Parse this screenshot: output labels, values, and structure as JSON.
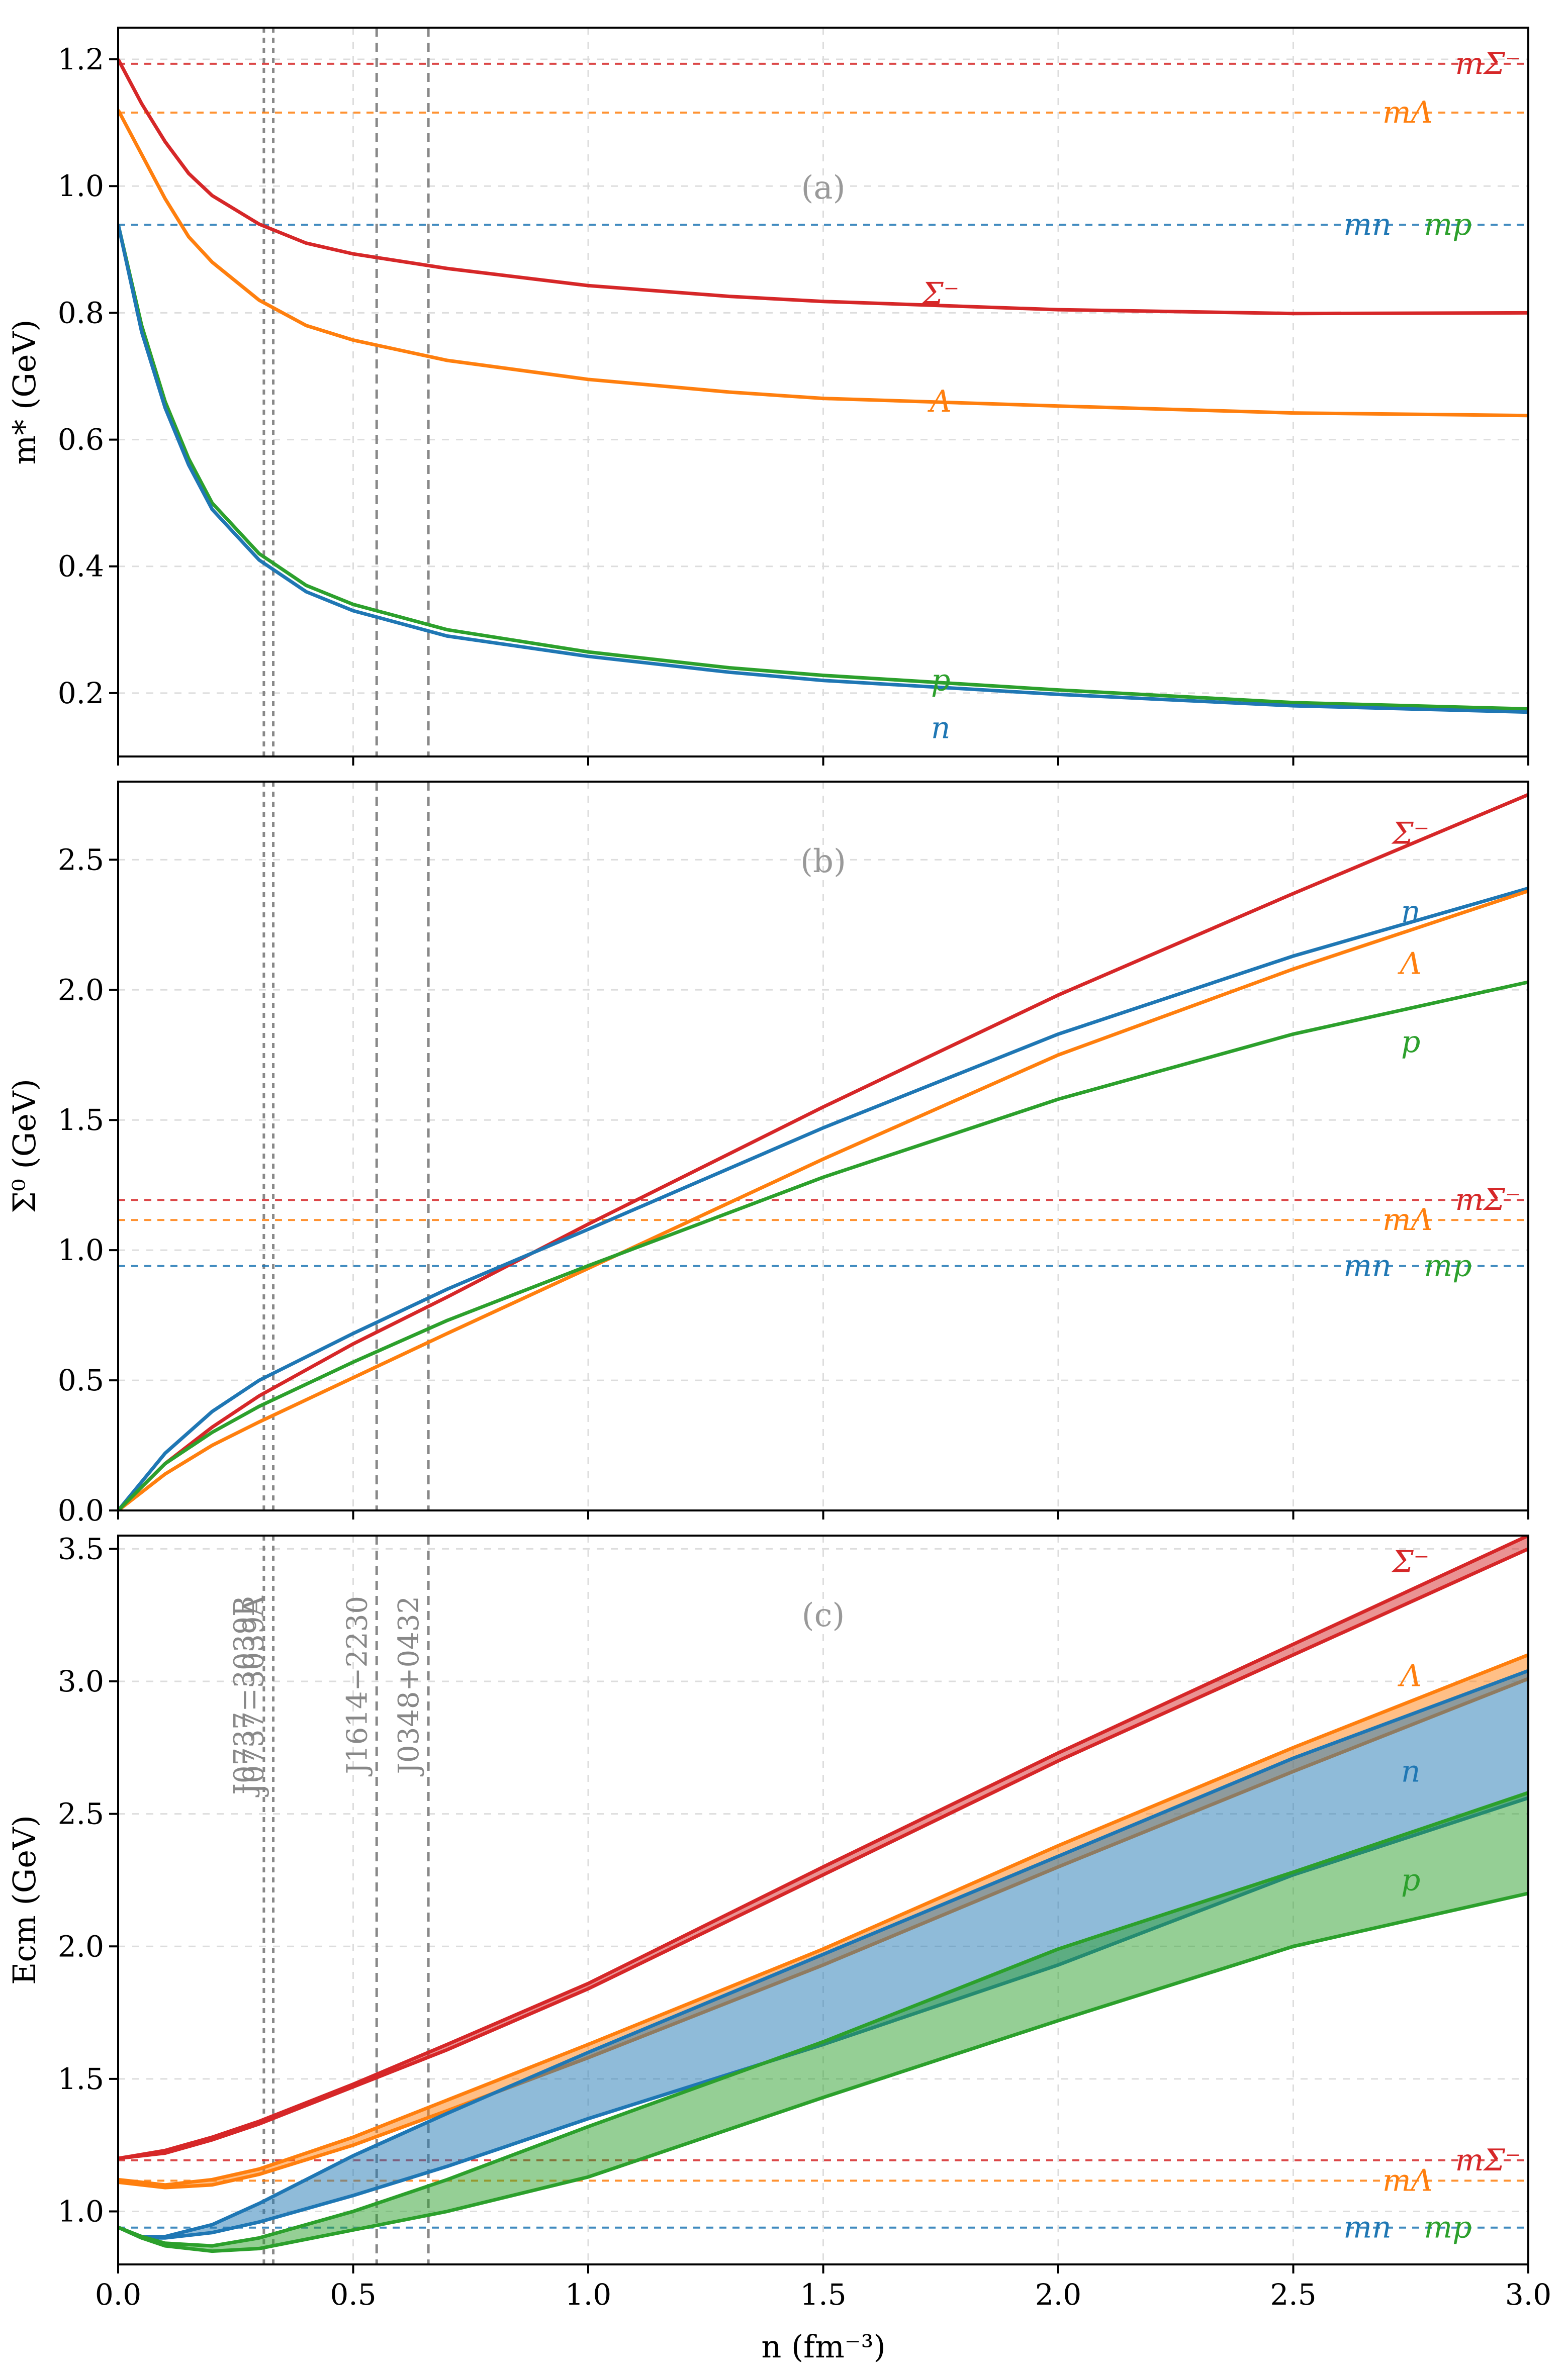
{
  "colors": {
    "n": "#1f77b4",
    "p": "#2ca02c",
    "Lambda": "#ff7f0e",
    "Sigma": "#d62728",
    "grid": "#dddddd",
    "vline": "#888888",
    "tag": "#999999"
  },
  "xaxis": {
    "label": "n (fm⁻³)",
    "range": [
      0,
      3
    ],
    "ticks": [
      0,
      0.5,
      1,
      1.5,
      2,
      2.5,
      3
    ],
    "tick_labels": [
      "0.0",
      "0.5",
      "1.0",
      "1.5",
      "2.0",
      "2.5",
      "3.0"
    ]
  },
  "pulsars": [
    {
      "name": "J0737−3039B",
      "n": 0.31
    },
    {
      "name": "J0737−3039A",
      "n": 0.33
    },
    {
      "name": "J1614−2230",
      "n": 0.55
    },
    {
      "name": "J0348+0432",
      "n": 0.66
    }
  ],
  "chart_data": [
    {
      "type": "line",
      "tag": "(a)",
      "ylabel": "m* (GeV)",
      "ylim": [
        0.1,
        1.25
      ],
      "yticks": [
        0.2,
        0.4,
        0.6,
        0.8,
        1.0,
        1.2
      ],
      "ytick_labels": [
        "0.2",
        "0.4",
        "0.6",
        "0.8",
        "1.0",
        "1.2"
      ],
      "hlines": [
        {
          "label": "mΣ⁻",
          "y": 1.193,
          "color": "Sigma"
        },
        {
          "label": "mΛ",
          "y": 1.116,
          "color": "Lambda"
        },
        {
          "label": "mn",
          "y": 0.939,
          "color": "n"
        },
        {
          "label": "mp",
          "y": 0.939,
          "color": "p"
        }
      ],
      "series": [
        {
          "name": "Σ⁻",
          "key": "Sigma",
          "x": [
            0,
            0.05,
            0.1,
            0.15,
            0.2,
            0.3,
            0.4,
            0.5,
            0.7,
            1.0,
            1.3,
            1.5,
            2.0,
            2.5,
            3.0
          ],
          "y": [
            1.2,
            1.13,
            1.07,
            1.02,
            0.985,
            0.94,
            0.91,
            0.893,
            0.87,
            0.843,
            0.826,
            0.818,
            0.805,
            0.799,
            0.8
          ],
          "label_at": [
            1.75,
            0.83
          ]
        },
        {
          "name": "Λ",
          "key": "Lambda",
          "x": [
            0,
            0.05,
            0.1,
            0.15,
            0.2,
            0.3,
            0.4,
            0.5,
            0.7,
            1.0,
            1.3,
            1.5,
            2.0,
            2.5,
            3.0
          ],
          "y": [
            1.12,
            1.05,
            0.98,
            0.92,
            0.88,
            0.82,
            0.78,
            0.757,
            0.725,
            0.695,
            0.675,
            0.665,
            0.653,
            0.642,
            0.638
          ],
          "label_at": [
            1.75,
            0.66
          ]
        },
        {
          "name": "p",
          "key": "p",
          "x": [
            0,
            0.05,
            0.1,
            0.15,
            0.2,
            0.3,
            0.4,
            0.5,
            0.7,
            1.0,
            1.3,
            1.5,
            2.0,
            2.5,
            3.0
          ],
          "y": [
            0.94,
            0.78,
            0.66,
            0.57,
            0.5,
            0.42,
            0.37,
            0.34,
            0.3,
            0.265,
            0.24,
            0.228,
            0.205,
            0.185,
            0.175
          ],
          "label_at": [
            1.75,
            0.22
          ]
        },
        {
          "name": "n",
          "key": "n",
          "x": [
            0,
            0.05,
            0.1,
            0.15,
            0.2,
            0.3,
            0.4,
            0.5,
            0.7,
            1.0,
            1.3,
            1.5,
            2.0,
            2.5,
            3.0
          ],
          "y": [
            0.94,
            0.77,
            0.65,
            0.56,
            0.49,
            0.41,
            0.36,
            0.33,
            0.29,
            0.258,
            0.233,
            0.22,
            0.198,
            0.18,
            0.17
          ],
          "label_at": [
            1.75,
            0.145
          ]
        }
      ]
    },
    {
      "type": "line",
      "tag": "(b)",
      "ylabel": "Σ⁰ (GeV)",
      "ylim": [
        0,
        2.8
      ],
      "yticks": [
        0,
        0.5,
        1,
        1.5,
        2,
        2.5
      ],
      "ytick_labels": [
        "0.0",
        "0.5",
        "1.0",
        "1.5",
        "2.0",
        "2.5"
      ],
      "hlines": [
        {
          "label": "mΣ⁻",
          "y": 1.193,
          "color": "Sigma"
        },
        {
          "label": "mΛ",
          "y": 1.116,
          "color": "Lambda"
        },
        {
          "label": "mn",
          "y": 0.939,
          "color": "n"
        },
        {
          "label": "mp",
          "y": 0.939,
          "color": "p"
        }
      ],
      "series": [
        {
          "name": "Σ⁻",
          "key": "Sigma",
          "x": [
            0,
            0.1,
            0.2,
            0.3,
            0.5,
            0.7,
            1.0,
            1.5,
            2.0,
            2.5,
            3.0
          ],
          "y": [
            0,
            0.18,
            0.32,
            0.44,
            0.64,
            0.82,
            1.1,
            1.55,
            1.98,
            2.37,
            2.75
          ],
          "label_at": [
            2.75,
            2.6
          ]
        },
        {
          "name": "n",
          "key": "n",
          "x": [
            0,
            0.1,
            0.2,
            0.3,
            0.5,
            0.7,
            1.0,
            1.5,
            2.0,
            2.5,
            3.0
          ],
          "y": [
            0,
            0.22,
            0.38,
            0.5,
            0.68,
            0.85,
            1.08,
            1.47,
            1.83,
            2.13,
            2.39
          ],
          "label_at": [
            2.75,
            2.3
          ]
        },
        {
          "name": "Λ",
          "key": "Lambda",
          "x": [
            0,
            0.1,
            0.2,
            0.3,
            0.5,
            0.7,
            1.0,
            1.5,
            2.0,
            2.5,
            3.0
          ],
          "y": [
            0,
            0.14,
            0.25,
            0.34,
            0.51,
            0.68,
            0.93,
            1.35,
            1.75,
            2.08,
            2.38
          ],
          "label_at": [
            2.75,
            2.1
          ]
        },
        {
          "name": "p",
          "key": "p",
          "x": [
            0,
            0.1,
            0.2,
            0.3,
            0.5,
            0.7,
            1.0,
            1.5,
            2.0,
            2.5,
            3.0
          ],
          "y": [
            0,
            0.18,
            0.3,
            0.4,
            0.57,
            0.73,
            0.94,
            1.28,
            1.58,
            1.83,
            2.03
          ],
          "label_at": [
            2.75,
            1.8
          ]
        }
      ]
    },
    {
      "type": "area",
      "tag": "(c)",
      "ylabel": "Ecm (GeV)",
      "xlabel": "n (fm⁻³)",
      "ylim": [
        0.8,
        3.55
      ],
      "yticks": [
        1,
        1.5,
        2,
        2.5,
        3,
        3.5
      ],
      "ytick_labels": [
        "1.0",
        "1.5",
        "2.0",
        "2.5",
        "3.0",
        "3.5"
      ],
      "hlines": [
        {
          "label": "mΣ⁻",
          "y": 1.193,
          "color": "Sigma"
        },
        {
          "label": "mΛ",
          "y": 1.116,
          "color": "Lambda"
        },
        {
          "label": "mn",
          "y": 0.939,
          "color": "n"
        },
        {
          "label": "mp",
          "y": 0.939,
          "color": "p"
        }
      ],
      "series": [
        {
          "name": "Σ⁻",
          "key": "Sigma",
          "x": [
            0,
            0.1,
            0.2,
            0.3,
            0.5,
            0.7,
            1.0,
            1.5,
            2.0,
            2.5,
            3.0
          ],
          "upper": [
            1.2,
            1.23,
            1.28,
            1.34,
            1.48,
            1.63,
            1.86,
            2.3,
            2.73,
            3.14,
            3.55
          ],
          "lower": [
            1.2,
            1.22,
            1.27,
            1.33,
            1.47,
            1.61,
            1.84,
            2.27,
            2.7,
            3.1,
            3.5
          ],
          "label_at": [
            2.75,
            3.45
          ]
        },
        {
          "name": "Λ",
          "key": "Lambda",
          "x": [
            0,
            0.1,
            0.2,
            0.3,
            0.5,
            0.7,
            1.0,
            1.5,
            2.0,
            2.5,
            3.0
          ],
          "upper": [
            1.12,
            1.1,
            1.12,
            1.16,
            1.28,
            1.42,
            1.63,
            1.99,
            2.38,
            2.75,
            3.1
          ],
          "lower": [
            1.11,
            1.09,
            1.1,
            1.14,
            1.25,
            1.38,
            1.58,
            1.93,
            2.3,
            2.66,
            3.01
          ],
          "label_at": [
            2.75,
            3.02
          ]
        },
        {
          "name": "n",
          "key": "n",
          "x": [
            0,
            0.05,
            0.1,
            0.2,
            0.3,
            0.5,
            0.7,
            1.0,
            1.5,
            2.0,
            2.5,
            3.0
          ],
          "upper": [
            0.94,
            0.905,
            0.905,
            0.95,
            1.03,
            1.21,
            1.37,
            1.6,
            1.97,
            2.34,
            2.71,
            3.04
          ],
          "lower": [
            0.94,
            0.9,
            0.9,
            0.92,
            0.96,
            1.06,
            1.17,
            1.35,
            1.63,
            1.93,
            2.27,
            2.56
          ],
          "label_at": [
            2.75,
            2.66
          ]
        },
        {
          "name": "p",
          "key": "p",
          "x": [
            0,
            0.05,
            0.1,
            0.2,
            0.3,
            0.5,
            0.7,
            1.0,
            1.5,
            2.0,
            2.5,
            3.0
          ],
          "upper": [
            0.94,
            0.905,
            0.88,
            0.87,
            0.9,
            1.0,
            1.12,
            1.32,
            1.64,
            1.99,
            2.28,
            2.58
          ],
          "lower": [
            0.94,
            0.9,
            0.87,
            0.85,
            0.86,
            0.93,
            1.0,
            1.13,
            1.43,
            1.72,
            2.0,
            2.2
          ],
          "label_at": [
            2.75,
            2.25
          ]
        }
      ]
    }
  ]
}
